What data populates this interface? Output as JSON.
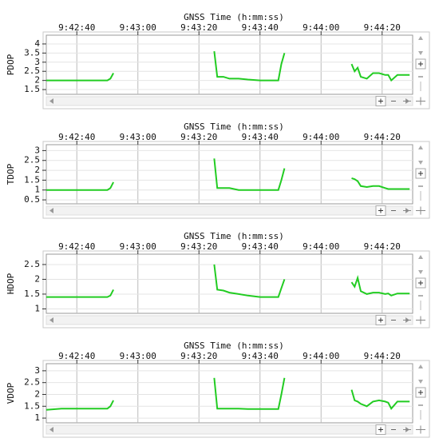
{
  "chart_data": [
    {
      "type": "line",
      "title": "GNSS Time (h:mm:ss)",
      "y_label": "PDOP",
      "color": "#22cc22",
      "grid": true,
      "x": [
        34950,
        34955,
        34960,
        34965,
        34970,
        34971,
        34972,
        34973,
        35005,
        35006,
        35008,
        35010,
        35013,
        35016,
        35020,
        35024,
        35026,
        35027,
        35028,
        35030,
        35050,
        35051,
        35052,
        35053,
        35055,
        35057,
        35059,
        35061,
        35062,
        35063,
        35065,
        35067,
        35069
      ],
      "values": [
        2.0,
        2.0,
        2.0,
        2.0,
        2.0,
        2.1,
        2.4,
        null,
        3.6,
        2.2,
        2.2,
        2.1,
        2.1,
        2.05,
        2.0,
        2.0,
        2.0,
        2.9,
        3.5,
        null,
        2.9,
        2.5,
        2.7,
        2.2,
        2.1,
        2.4,
        2.4,
        2.3,
        2.3,
        2.0,
        2.3,
        2.3,
        2.3
      ],
      "xlim": [
        34950,
        35070
      ],
      "ylim": [
        1.24,
        4.48
      ],
      "xticks": [
        {
          "value": 34960,
          "label": "9:42:40"
        },
        {
          "value": 34980,
          "label": "9:43:00"
        },
        {
          "value": 35000,
          "label": "9:43:20"
        },
        {
          "value": 35020,
          "label": "9:43:40"
        },
        {
          "value": 35040,
          "label": "9:44:00"
        },
        {
          "value": 35060,
          "label": "9:44:20"
        }
      ],
      "yticks": [
        1.5,
        2.0,
        2.5,
        3.0,
        3.5,
        4.0
      ]
    },
    {
      "type": "line",
      "title": "GNSS Time (h:mm:ss)",
      "y_label": "TDOP",
      "color": "#22cc22",
      "grid": true,
      "x": [
        34950,
        34955,
        34960,
        34965,
        34970,
        34971,
        34972,
        34973,
        35005,
        35006,
        35008,
        35010,
        35013,
        35016,
        35020,
        35024,
        35026,
        35027,
        35028,
        35030,
        35050,
        35051,
        35052,
        35053,
        35055,
        35057,
        35059,
        35061,
        35062,
        35063,
        35065,
        35067,
        35069
      ],
      "values": [
        1.0,
        1.0,
        1.0,
        1.0,
        1.0,
        1.1,
        1.4,
        null,
        2.6,
        1.1,
        1.1,
        1.1,
        1.0,
        1.0,
        1.0,
        1.0,
        1.0,
        1.5,
        2.1,
        null,
        1.6,
        1.55,
        1.45,
        1.2,
        1.15,
        1.2,
        1.2,
        1.1,
        1.05,
        1.05,
        1.05,
        1.05,
        1.05
      ],
      "xlim": [
        34950,
        35070
      ],
      "ylim": [
        0.3,
        3.3
      ],
      "xticks": [
        {
          "value": 34960,
          "label": "9:42:40"
        },
        {
          "value": 34980,
          "label": "9:43:00"
        },
        {
          "value": 35000,
          "label": "9:43:20"
        },
        {
          "value": 35020,
          "label": "9:43:40"
        },
        {
          "value": 35040,
          "label": "9:44:00"
        },
        {
          "value": 35060,
          "label": "9:44:20"
        }
      ],
      "yticks": [
        0.5,
        1.0,
        1.5,
        2.0,
        2.5,
        3.0
      ]
    },
    {
      "type": "line",
      "title": "GNSS Time (h:mm:ss)",
      "y_label": "HDOP",
      "color": "#22cc22",
      "grid": true,
      "x": [
        34950,
        34955,
        34960,
        34965,
        34970,
        34971,
        34972,
        34973,
        35005,
        35006,
        35008,
        35010,
        35013,
        35016,
        35020,
        35024,
        35026,
        35027,
        35028,
        35030,
        35050,
        35051,
        35052,
        35053,
        35055,
        35057,
        35059,
        35061,
        35062,
        35063,
        35065,
        35067,
        35069
      ],
      "values": [
        1.4,
        1.4,
        1.4,
        1.4,
        1.4,
        1.45,
        1.65,
        null,
        2.5,
        1.65,
        1.62,
        1.55,
        1.5,
        1.45,
        1.4,
        1.4,
        1.4,
        1.7,
        2.0,
        null,
        1.9,
        1.75,
        2.05,
        1.6,
        1.5,
        1.55,
        1.55,
        1.5,
        1.52,
        1.45,
        1.52,
        1.52,
        1.52
      ],
      "xlim": [
        34950,
        35070
      ],
      "ylim": [
        0.85,
        2.85
      ],
      "xticks": [
        {
          "value": 34960,
          "label": "9:42:40"
        },
        {
          "value": 34980,
          "label": "9:43:00"
        },
        {
          "value": 35000,
          "label": "9:43:20"
        },
        {
          "value": 35020,
          "label": "9:43:40"
        },
        {
          "value": 35040,
          "label": "9:44:00"
        },
        {
          "value": 35060,
          "label": "9:44:20"
        }
      ],
      "yticks": [
        1.0,
        1.5,
        2.0,
        2.5
      ]
    },
    {
      "type": "line",
      "title": "GNSS Time (h:mm:ss)",
      "y_label": "VDOP",
      "color": "#22cc22",
      "grid": true,
      "x": [
        34950,
        34955,
        34960,
        34965,
        34970,
        34971,
        34972,
        34973,
        35005,
        35006,
        35008,
        35010,
        35013,
        35016,
        35020,
        35024,
        35026,
        35027,
        35028,
        35030,
        35050,
        35051,
        35052,
        35053,
        35055,
        35057,
        35059,
        35061,
        35062,
        35063,
        35065,
        35067,
        35069
      ],
      "values": [
        1.35,
        1.4,
        1.4,
        1.4,
        1.4,
        1.5,
        1.75,
        null,
        2.7,
        1.4,
        1.4,
        1.4,
        1.4,
        1.38,
        1.38,
        1.38,
        1.38,
        2.0,
        2.7,
        null,
        2.2,
        1.75,
        1.7,
        1.6,
        1.5,
        1.7,
        1.75,
        1.7,
        1.65,
        1.4,
        1.7,
        1.7,
        1.7
      ],
      "xlim": [
        34950,
        35070
      ],
      "ylim": [
        0.8,
        3.3
      ],
      "xticks": [
        {
          "value": 34960,
          "label": "9:42:40"
        },
        {
          "value": 34980,
          "label": "9:43:00"
        },
        {
          "value": 35000,
          "label": "9:43:20"
        },
        {
          "value": 35020,
          "label": "9:43:40"
        },
        {
          "value": 35040,
          "label": "9:44:00"
        },
        {
          "value": 35060,
          "label": "9:44:20"
        }
      ],
      "yticks": [
        1.0,
        1.5,
        2.0,
        2.5,
        3.0
      ]
    }
  ]
}
